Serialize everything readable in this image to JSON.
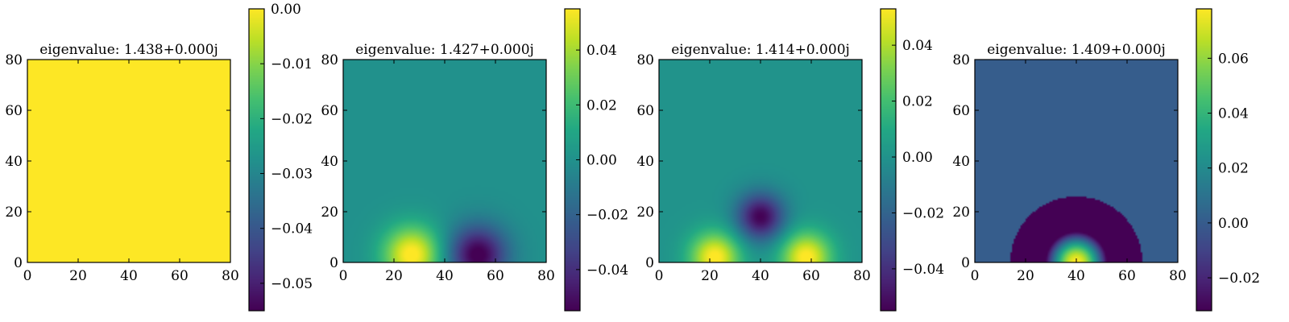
{
  "chart_data": [
    {
      "type": "heatmap",
      "title": "eigenvalue: 1.438+0.000j",
      "mode": "n0",
      "sign": -1,
      "xlim": [
        0,
        80
      ],
      "ylim": [
        0,
        80
      ],
      "xticks": [
        "0",
        "20",
        "40",
        "60",
        "80"
      ],
      "yticks": [
        "0",
        "20",
        "40",
        "60",
        "80"
      ],
      "colorbar": {
        "vmin": -0.055,
        "vmax": 0.0,
        "ticks": [
          {
            "value": 0.0,
            "label": "0.00"
          },
          {
            "value": -0.01,
            "label": "−0.01"
          },
          {
            "value": -0.02,
            "label": "−0.02"
          },
          {
            "value": -0.03,
            "label": "−0.03"
          },
          {
            "value": -0.04,
            "label": "−0.04"
          },
          {
            "value": -0.05,
            "label": "−0.05"
          }
        ]
      }
    },
    {
      "type": "heatmap",
      "title": "eigenvalue: 1.427+0.000j",
      "mode": "n1",
      "sign": 1,
      "xlim": [
        0,
        80
      ],
      "ylim": [
        0,
        80
      ],
      "xticks": [
        "0",
        "20",
        "40",
        "60",
        "80"
      ],
      "yticks": [
        "0",
        "20",
        "40",
        "60",
        "80"
      ],
      "colorbar": {
        "vmin": -0.055,
        "vmax": 0.055,
        "ticks": [
          {
            "value": 0.04,
            "label": "0.04"
          },
          {
            "value": 0.02,
            "label": "0.02"
          },
          {
            "value": 0.0,
            "label": "0.00"
          },
          {
            "value": -0.02,
            "label": "−0.02"
          },
          {
            "value": -0.04,
            "label": "−0.04"
          }
        ]
      }
    },
    {
      "type": "heatmap",
      "title": "eigenvalue: 1.414+0.000j",
      "mode": "n2",
      "sign": 1,
      "xlim": [
        0,
        80
      ],
      "ylim": [
        0,
        80
      ],
      "xticks": [
        "0",
        "20",
        "40",
        "60",
        "80"
      ],
      "yticks": [
        "0",
        "20",
        "40",
        "60",
        "80"
      ],
      "colorbar": {
        "vmin": -0.055,
        "vmax": 0.053,
        "ticks": [
          {
            "value": 0.04,
            "label": "0.04"
          },
          {
            "value": 0.02,
            "label": "0.02"
          },
          {
            "value": 0.0,
            "label": "0.00"
          },
          {
            "value": -0.02,
            "label": "−0.02"
          },
          {
            "value": -0.04,
            "label": "−0.04"
          }
        ]
      }
    },
    {
      "type": "heatmap",
      "title": "eigenvalue: 1.409+0.000j",
      "mode": "radial",
      "sign": 1,
      "xlim": [
        0,
        80
      ],
      "ylim": [
        0,
        80
      ],
      "xticks": [
        "0",
        "20",
        "40",
        "60",
        "80"
      ],
      "yticks": [
        "0",
        "20",
        "40",
        "60",
        "80"
      ],
      "colorbar": {
        "vmin": -0.032,
        "vmax": 0.078,
        "ticks": [
          {
            "value": 0.06,
            "label": "0.06"
          },
          {
            "value": 0.04,
            "label": "0.04"
          },
          {
            "value": 0.02,
            "label": "0.02"
          },
          {
            "value": 0.0,
            "label": "0.00"
          },
          {
            "value": -0.02,
            "label": "−0.02"
          }
        ]
      }
    }
  ]
}
